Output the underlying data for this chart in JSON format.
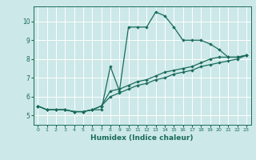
{
  "xlabel": "Humidex (Indice chaleur)",
  "ylabel": "",
  "background_color": "#cce8e8",
  "grid_color": "#ffffff",
  "line_color": "#1a6b5a",
  "xlim": [
    -0.5,
    23.5
  ],
  "ylim": [
    4.5,
    10.8
  ],
  "xticks": [
    0,
    1,
    2,
    3,
    4,
    5,
    6,
    7,
    8,
    9,
    10,
    11,
    12,
    13,
    14,
    15,
    16,
    17,
    18,
    19,
    20,
    21,
    22,
    23
  ],
  "yticks": [
    5,
    6,
    7,
    8,
    9,
    10
  ],
  "series1_x": [
    0,
    1,
    2,
    3,
    4,
    5,
    6,
    7,
    8,
    9,
    10,
    11,
    12,
    13,
    14,
    15,
    16,
    17,
    18,
    19,
    20,
    21,
    22,
    23
  ],
  "series1_y": [
    5.5,
    5.3,
    5.3,
    5.3,
    5.2,
    5.2,
    5.3,
    5.3,
    7.6,
    6.3,
    9.7,
    9.7,
    9.7,
    10.5,
    10.3,
    9.7,
    9.0,
    9.0,
    9.0,
    8.8,
    8.5,
    8.1,
    8.1,
    8.2
  ],
  "series2_x": [
    0,
    1,
    2,
    3,
    4,
    5,
    6,
    7,
    8,
    9,
    10,
    11,
    12,
    13,
    14,
    15,
    16,
    17,
    18,
    19,
    20,
    21,
    22,
    23
  ],
  "series2_y": [
    5.5,
    5.3,
    5.3,
    5.3,
    5.2,
    5.2,
    5.3,
    5.5,
    6.3,
    6.4,
    6.6,
    6.8,
    6.9,
    7.1,
    7.3,
    7.4,
    7.5,
    7.6,
    7.8,
    8.0,
    8.1,
    8.1,
    8.1,
    8.2
  ],
  "series3_x": [
    0,
    1,
    2,
    3,
    4,
    5,
    6,
    7,
    8,
    9,
    10,
    11,
    12,
    13,
    14,
    15,
    16,
    17,
    18,
    19,
    20,
    21,
    22,
    23
  ],
  "series3_y": [
    5.5,
    5.3,
    5.3,
    5.3,
    5.2,
    5.2,
    5.3,
    5.5,
    6.0,
    6.2,
    6.4,
    6.6,
    6.7,
    6.9,
    7.0,
    7.2,
    7.3,
    7.4,
    7.6,
    7.7,
    7.8,
    7.9,
    8.0,
    8.2
  ]
}
